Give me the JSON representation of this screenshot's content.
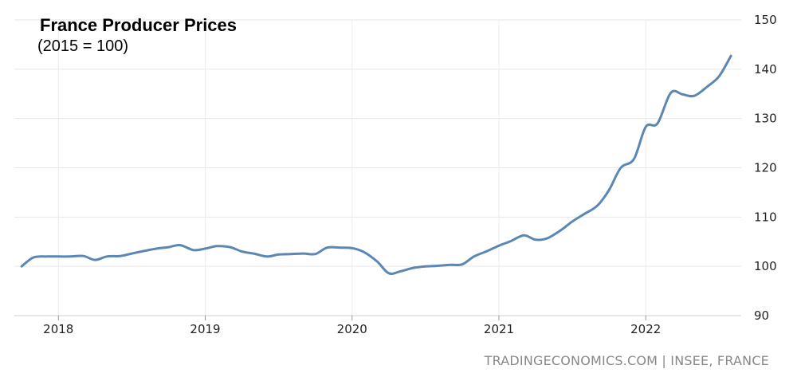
{
  "chart_data": {
    "type": "line",
    "title": "France Producer Prices",
    "subtitle": "(2015 = 100)",
    "source": "TRADINGECONOMICS.COM | INSEE, FRANCE",
    "ylim": [
      90,
      150
    ],
    "yticks": [
      90,
      100,
      110,
      120,
      130,
      140,
      150
    ],
    "xticks": [
      {
        "label": "2018",
        "x": 2018.0
      },
      {
        "label": "2019",
        "x": 2019.0
      },
      {
        "label": "2020",
        "x": 2020.0
      },
      {
        "label": "2021",
        "x": 2021.0
      },
      {
        "label": "2022",
        "x": 2022.0
      }
    ],
    "xlim": [
      2017.7,
      2022.65
    ],
    "grid": true,
    "series_color": "#5b87b4",
    "series": [
      {
        "x": [
          2017.75,
          2017.83,
          2017.92,
          2018.0,
          2018.08,
          2018.17,
          2018.25,
          2018.33,
          2018.42,
          2018.5,
          2018.58,
          2018.67,
          2018.75,
          2018.83,
          2018.92,
          2019.0,
          2019.08,
          2019.17,
          2019.25,
          2019.33,
          2019.42,
          2019.5,
          2019.58,
          2019.67,
          2019.75,
          2019.83,
          2019.92,
          2020.0,
          2020.08,
          2020.17,
          2020.25,
          2020.33,
          2020.42,
          2020.5,
          2020.58,
          2020.67,
          2020.75,
          2020.83,
          2020.92,
          2021.0,
          2021.08,
          2021.17,
          2021.25,
          2021.33,
          2021.42,
          2021.5,
          2021.58,
          2021.67,
          2021.75,
          2021.83,
          2021.92,
          2022.0,
          2022.08,
          2022.17,
          2022.25,
          2022.33,
          2022.42,
          2022.5,
          2022.58
        ],
        "y": [
          100.0,
          101.8,
          102.0,
          102.0,
          102.0,
          102.1,
          101.3,
          102.0,
          102.1,
          102.6,
          103.1,
          103.6,
          103.9,
          104.3,
          103.3,
          103.6,
          104.1,
          103.9,
          103.0,
          102.6,
          102.0,
          102.4,
          102.5,
          102.6,
          102.5,
          103.8,
          103.8,
          103.7,
          102.9,
          101.0,
          98.6,
          99.0,
          99.7,
          100.0,
          100.1,
          100.3,
          100.4,
          102.0,
          103.1,
          104.2,
          105.1,
          106.3,
          105.4,
          105.7,
          107.3,
          109.1,
          110.6,
          112.3,
          115.5,
          120.0,
          121.8,
          128.3,
          129.0,
          135.2,
          134.9,
          134.6,
          136.5,
          138.6,
          142.7
        ]
      }
    ]
  }
}
